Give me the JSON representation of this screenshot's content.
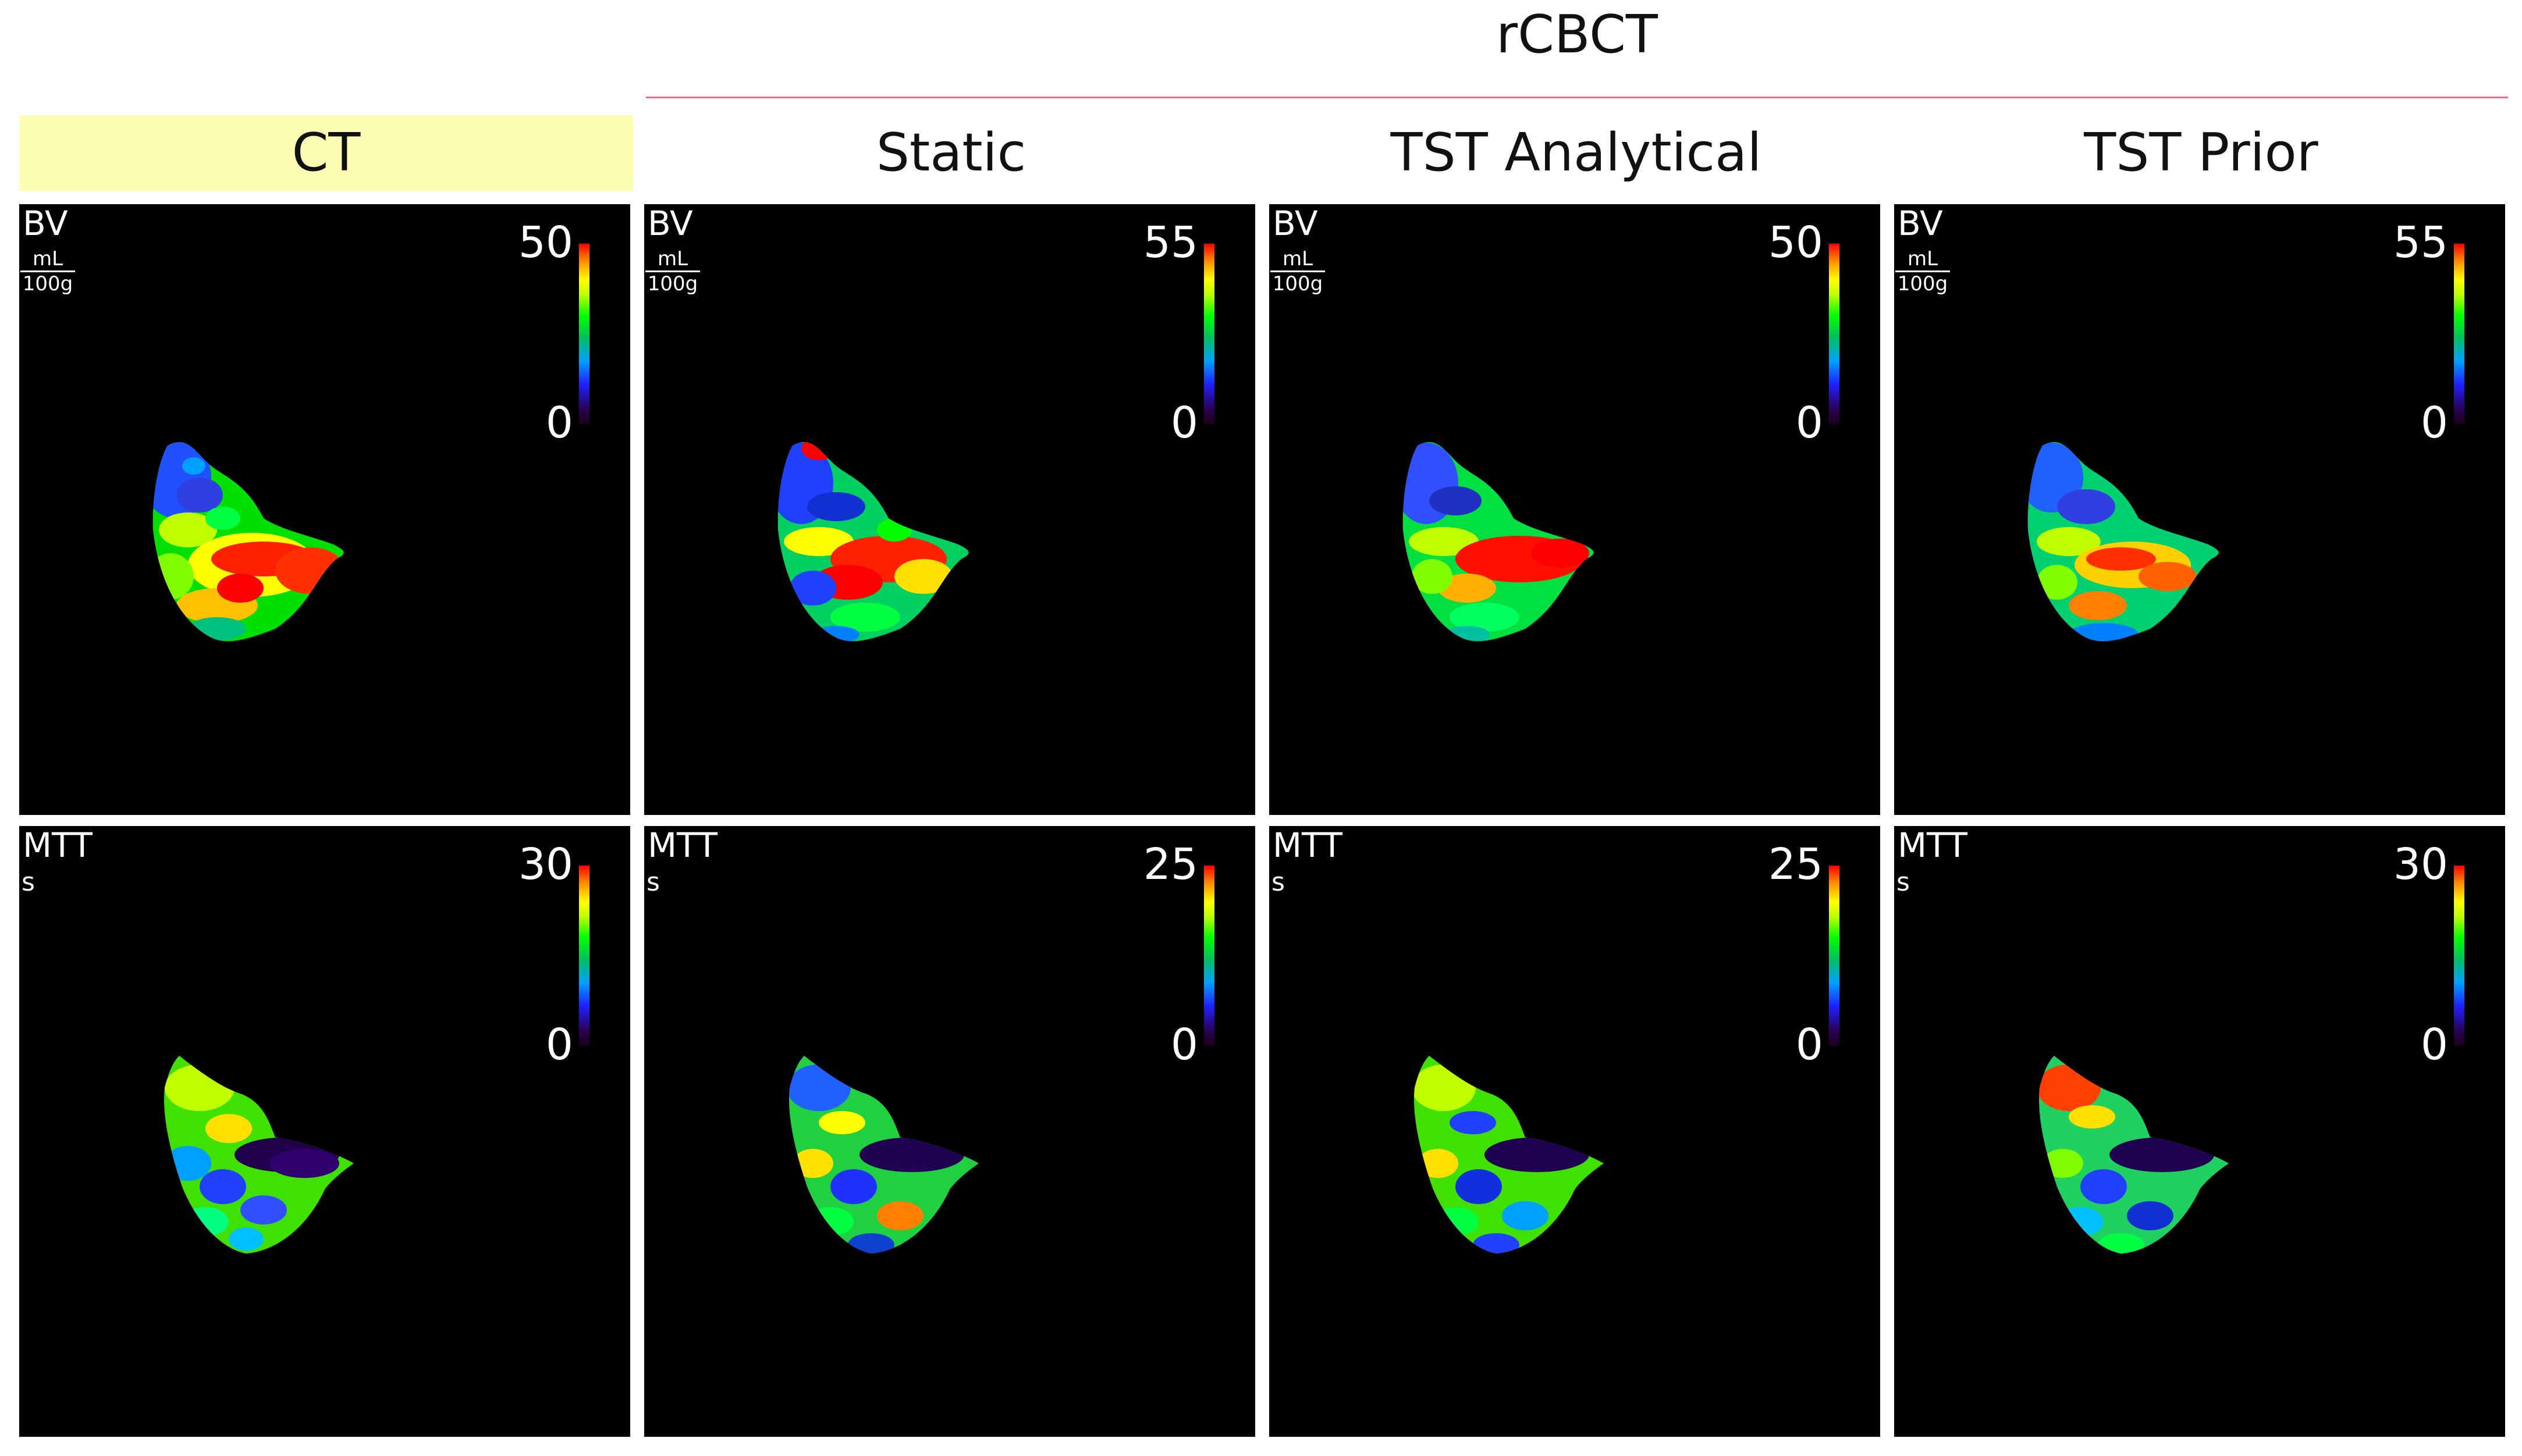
{
  "group_title": "rCBCT",
  "columns": [
    {
      "label": "CT",
      "highlighted": true
    },
    {
      "label": "Static",
      "highlighted": false
    },
    {
      "label": "TST Analytical",
      "highlighted": false
    },
    {
      "label": "TST Prior",
      "highlighted": false
    }
  ],
  "rows": [
    {
      "metric": "BV",
      "unit_numerator": "mL",
      "unit_denominator": "100g",
      "scale_max": [
        "50",
        "55",
        "50",
        "55"
      ],
      "scale_min": [
        "0",
        "0",
        "0",
        "0"
      ]
    },
    {
      "metric": "MTT",
      "unit": "s",
      "scale_max": [
        "30",
        "25",
        "25",
        "30"
      ],
      "scale_min": [
        "0",
        "0",
        "0",
        "0"
      ]
    }
  ],
  "colormap": "rainbow",
  "highlight_color": "#fdfdb3",
  "line_color": "#ff6b85"
}
